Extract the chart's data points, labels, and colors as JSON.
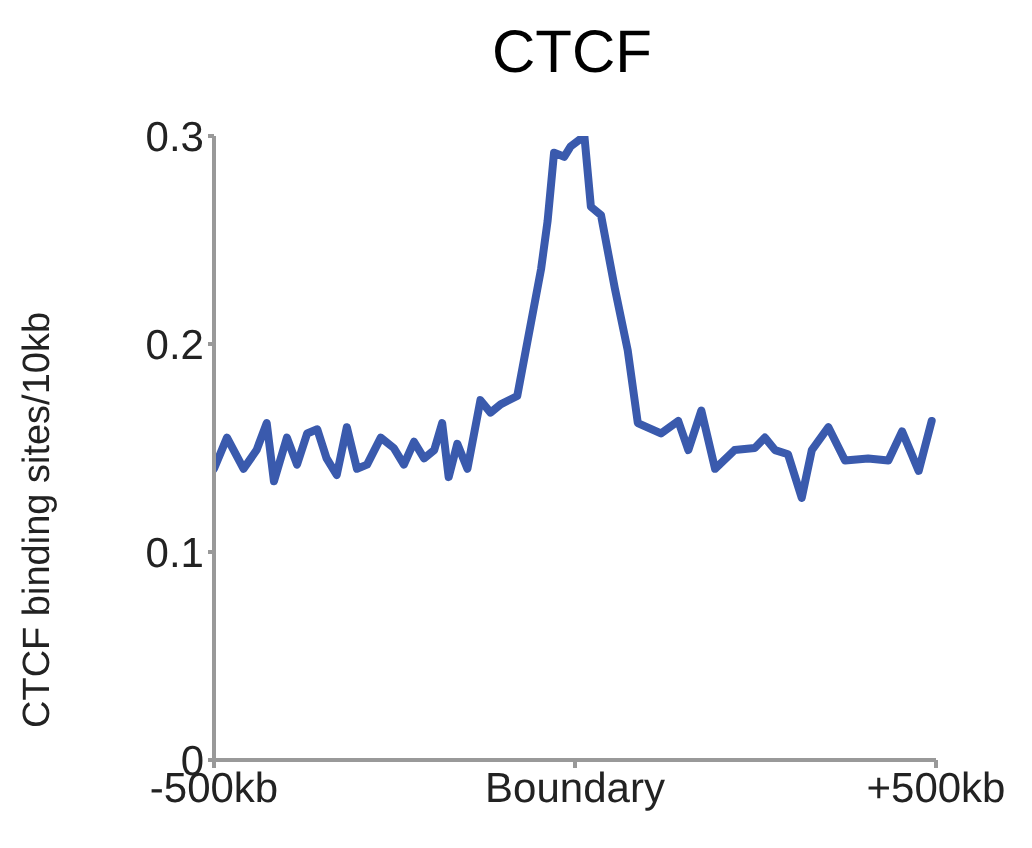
{
  "chart_data": {
    "type": "line",
    "title": "CTCF",
    "ylabel": "CTCF binding sites/10kb",
    "xlim": [
      -500,
      500
    ],
    "xticks": [
      {
        "value": -500,
        "label": "-500kb"
      },
      {
        "value": 0,
        "label": "Boundary"
      },
      {
        "value": 500,
        "label": "+500kb"
      }
    ],
    "ylim": [
      0,
      0.3
    ],
    "yticks": [
      0,
      0.1,
      0.2,
      0.3
    ],
    "grid": false,
    "legend": false,
    "marker": "none",
    "line_style": "solid",
    "series": [
      {
        "color": "#3a5aad",
        "x": [
          -500,
          -482,
          -459,
          -441,
          -427,
          -417,
          -399,
          -385,
          -371,
          -357,
          -344,
          -330,
          -316,
          -302,
          -288,
          -269,
          -251,
          -237,
          -223,
          -209,
          -195,
          -184,
          -175,
          -163,
          -149,
          -131,
          -117,
          -103,
          -80,
          -66,
          -47,
          -38,
          -29,
          -15,
          -6,
          13,
          22,
          36,
          55,
          73,
          87,
          119,
          143,
          157,
          175,
          194,
          221,
          249,
          263,
          277,
          295,
          314,
          328,
          351,
          374,
          406,
          434,
          453,
          476,
          494
        ],
        "values": [
          0.14,
          0.155,
          0.14,
          0.149,
          0.162,
          0.134,
          0.155,
          0.142,
          0.157,
          0.159,
          0.145,
          0.137,
          0.16,
          0.14,
          0.142,
          0.155,
          0.15,
          0.142,
          0.153,
          0.145,
          0.149,
          0.162,
          0.136,
          0.152,
          0.14,
          0.173,
          0.167,
          0.171,
          0.175,
          0.201,
          0.236,
          0.259,
          0.292,
          0.29,
          0.295,
          0.3,
          0.266,
          0.262,
          0.227,
          0.197,
          0.162,
          0.157,
          0.163,
          0.149,
          0.168,
          0.14,
          0.149,
          0.15,
          0.155,
          0.149,
          0.147,
          0.126,
          0.149,
          0.16,
          0.144,
          0.145,
          0.144,
          0.158,
          0.139,
          0.163
        ]
      }
    ]
  }
}
